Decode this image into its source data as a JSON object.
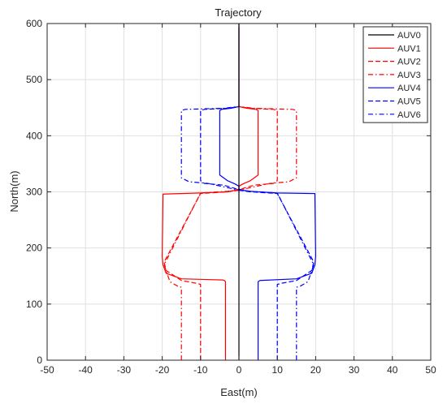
{
  "chart_data": {
    "type": "line",
    "title": "Trajectory",
    "xlabel": "East(m)",
    "ylabel": "North(m)",
    "xlim": [
      -50,
      50
    ],
    "ylim": [
      0,
      600
    ],
    "xticks": [
      -50,
      -40,
      -30,
      -20,
      -10,
      0,
      10,
      20,
      30,
      40,
      50
    ],
    "yticks": [
      0,
      100,
      200,
      300,
      400,
      500,
      600
    ],
    "grid": true,
    "legend_position": "top-right",
    "series": [
      {
        "name": "AUV0",
        "color": "#000000",
        "dash": "solid",
        "x": [
          0,
          0
        ],
        "y": [
          0,
          600
        ]
      },
      {
        "name": "AUV1",
        "color": "#ff0000",
        "dash": "solid",
        "x": [
          -3.5,
          -3.5,
          -3.8,
          -4.2,
          -15,
          -19,
          -19.8,
          -20,
          -19.8,
          -10,
          -3,
          -1,
          0,
          0,
          1,
          3,
          5,
          5,
          4.5,
          2,
          0,
          0
        ],
        "y": [
          0,
          140,
          142,
          143,
          145,
          155,
          170,
          185,
          296,
          298,
          300,
          303,
          305,
          310,
          314,
          320,
          330,
          445,
          447,
          449,
          452,
          600
        ]
      },
      {
        "name": "AUV2",
        "color": "#ff0000",
        "dash": "dashed",
        "x": [
          -10,
          -10,
          -11,
          -15,
          -19,
          -19.5,
          -10,
          -3,
          0,
          1,
          4,
          9,
          10,
          10,
          9,
          3,
          0
        ],
        "y": [
          0,
          135,
          137,
          142,
          160,
          175,
          297,
          300,
          303,
          306,
          312,
          315,
          320,
          445,
          447,
          449,
          452
        ]
      },
      {
        "name": "AUV3",
        "color": "#ff0000",
        "dash": "dashdot",
        "x": [
          -15,
          -15,
          -16,
          -18,
          -19.5,
          -10,
          -3,
          0,
          2,
          8,
          13,
          15,
          15,
          14,
          4,
          0
        ],
        "y": [
          0,
          130,
          132,
          140,
          170,
          298,
          301,
          303,
          306,
          315,
          318,
          325,
          445,
          447,
          449,
          452
        ]
      },
      {
        "name": "AUV4",
        "color": "#0000ff",
        "dash": "solid",
        "x": [
          5,
          5,
          5.5,
          15,
          19,
          19.8,
          20,
          19.8,
          10,
          3,
          1,
          0,
          0,
          -1,
          -3,
          -5,
          -5,
          -4.5,
          -2,
          0,
          0
        ],
        "y": [
          0,
          140,
          142,
          145,
          155,
          170,
          185,
          297,
          298,
          301,
          303,
          305,
          310,
          314,
          320,
          330,
          445,
          447,
          449,
          452,
          600
        ]
      },
      {
        "name": "AUV5",
        "color": "#0000ff",
        "dash": "dashed",
        "x": [
          10,
          10,
          11,
          15,
          19,
          19.5,
          10,
          3,
          0,
          -1,
          -4,
          -9,
          -10,
          -10,
          -9,
          -3,
          0
        ],
        "y": [
          0,
          135,
          137,
          142,
          160,
          175,
          297,
          300,
          303,
          306,
          312,
          315,
          320,
          445,
          447,
          449,
          452
        ]
      },
      {
        "name": "AUV6",
        "color": "#0000ff",
        "dash": "dashdot",
        "x": [
          15,
          15,
          16,
          18,
          19.5,
          10,
          3,
          0,
          -2,
          -8,
          -13,
          -15,
          -15,
          -14,
          -4,
          0
        ],
        "y": [
          0,
          130,
          132,
          140,
          170,
          298,
          301,
          303,
          306,
          315,
          318,
          325,
          445,
          447,
          449,
          452
        ]
      }
    ]
  }
}
